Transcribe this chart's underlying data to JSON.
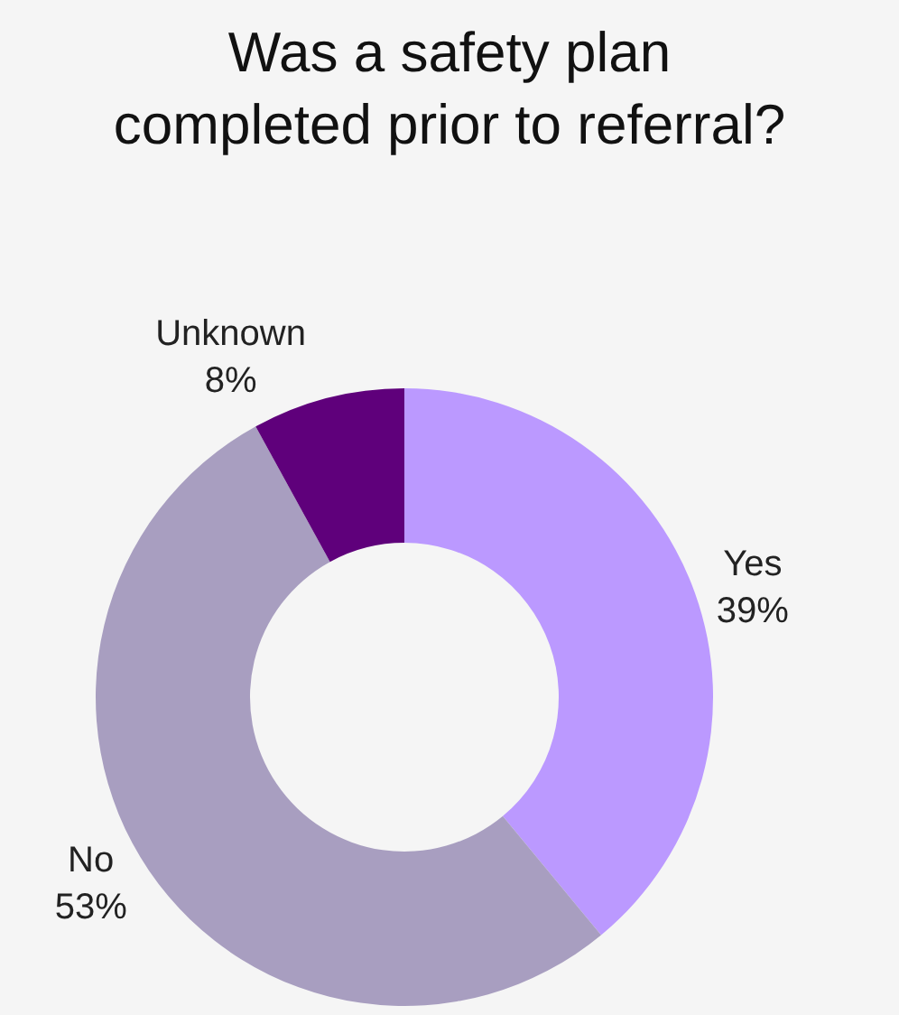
{
  "chart_data": {
    "type": "donut",
    "title": "Was a safety plan\ncompleted prior to referral?",
    "categories": [
      "Yes",
      "No",
      "Unknown"
    ],
    "values": [
      39,
      53,
      8
    ],
    "colors": [
      "#bb99ff",
      "#a89ec0",
      "#5f007b"
    ],
    "value_labels": [
      "39%",
      "53%",
      "8%"
    ],
    "legend": false
  }
}
